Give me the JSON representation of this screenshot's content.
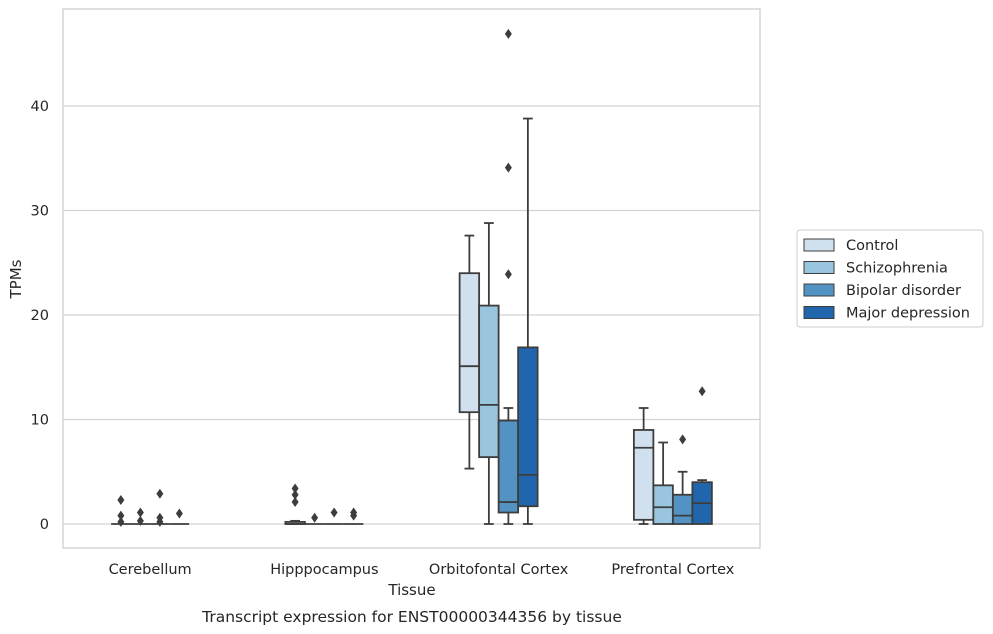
{
  "chart_data": {
    "type": "box",
    "title": "",
    "caption": "Transcript expression for ENST00000344356 by tissue",
    "xlabel": "Tissue",
    "ylabel": "TPMs",
    "ylim": [
      -2.3,
      49
    ],
    "yticks": [
      0,
      10,
      20,
      30,
      40
    ],
    "grid": "horizontal",
    "legend_position": "right",
    "categories": [
      "Cerebellum",
      "Hipppocampus",
      "Orbitofontal Cortex",
      "Prefrontal Cortex"
    ],
    "series": [
      {
        "name": "Control",
        "color": "#d0e0ef",
        "boxes": [
          {
            "whislo": 0,
            "q1": 0,
            "med": 0,
            "q3": 0,
            "whishi": 0,
            "fliers": [
              2.3,
              0.8,
              0.2
            ]
          },
          {
            "whislo": 0,
            "q1": 0,
            "med": 0,
            "q3": 0.2,
            "whishi": 0.3,
            "fliers": [
              3.4,
              2.8,
              2.1
            ]
          },
          {
            "whislo": 5.3,
            "q1": 10.7,
            "med": 15.1,
            "q3": 24.0,
            "whishi": 27.6,
            "fliers": []
          },
          {
            "whislo": 0,
            "q1": 0.4,
            "med": 7.3,
            "q3": 9.0,
            "whishi": 11.1,
            "fliers": []
          }
        ]
      },
      {
        "name": "Schizophrenia",
        "color": "#9ac5de",
        "boxes": [
          {
            "whislo": 0,
            "q1": 0,
            "med": 0,
            "q3": 0,
            "whishi": 0,
            "fliers": [
              1.1,
              0.3
            ]
          },
          {
            "whislo": 0,
            "q1": 0,
            "med": 0,
            "q3": 0,
            "whishi": 0,
            "fliers": [
              0.6
            ]
          },
          {
            "whislo": 0,
            "q1": 6.4,
            "med": 11.4,
            "q3": 20.9,
            "whishi": 28.8,
            "fliers": []
          },
          {
            "whislo": 0,
            "q1": 0,
            "med": 1.6,
            "q3": 3.7,
            "whishi": 7.8,
            "fliers": []
          }
        ]
      },
      {
        "name": "Bipolar disorder",
        "color": "#5393c3",
        "boxes": [
          {
            "whislo": 0,
            "q1": 0,
            "med": 0,
            "q3": 0,
            "whishi": 0,
            "fliers": [
              2.9,
              0.6,
              0.2
            ]
          },
          {
            "whislo": 0,
            "q1": 0,
            "med": 0,
            "q3": 0,
            "whishi": 0,
            "fliers": [
              1.1
            ]
          },
          {
            "whislo": 0,
            "q1": 1.1,
            "med": 2.1,
            "q3": 9.9,
            "whishi": 11.1,
            "fliers": [
              46.9,
              34.1,
              23.9
            ]
          },
          {
            "whislo": 0,
            "q1": 0,
            "med": 0.8,
            "q3": 2.8,
            "whishi": 5.0,
            "fliers": [
              8.1
            ]
          }
        ]
      },
      {
        "name": "Major depression",
        "color": "#2166ac",
        "boxes": [
          {
            "whislo": 0,
            "q1": 0,
            "med": 0,
            "q3": 0,
            "whishi": 0,
            "fliers": [
              1.0
            ]
          },
          {
            "whislo": 0,
            "q1": 0,
            "med": 0,
            "q3": 0,
            "whishi": 0,
            "fliers": [
              1.1,
              0.8
            ]
          },
          {
            "whislo": 0,
            "q1": 1.7,
            "med": 4.7,
            "q3": 16.9,
            "whishi": 38.8,
            "fliers": []
          },
          {
            "whislo": 0,
            "q1": 0,
            "med": 2.0,
            "q3": 4.0,
            "whishi": 4.2,
            "fliers": [
              12.7
            ]
          }
        ]
      }
    ]
  }
}
